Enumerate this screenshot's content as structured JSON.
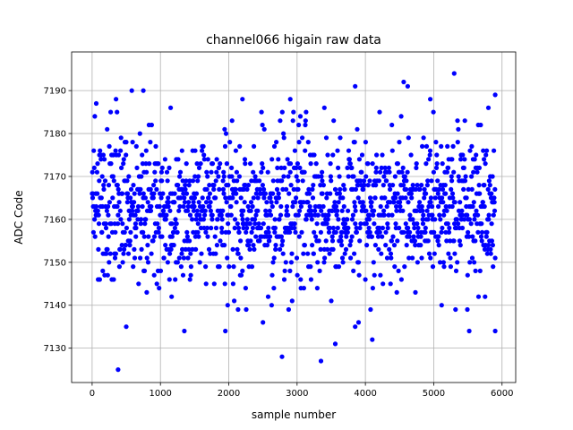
{
  "chart_data": {
    "type": "scatter",
    "title": "channel066 higain raw data",
    "xlabel": "sample number",
    "ylabel": "ADC Code",
    "xlim": [
      -300,
      6200
    ],
    "ylim": [
      7122,
      7199
    ],
    "x_ticks": [
      0,
      1000,
      2000,
      3000,
      4000,
      5000,
      6000
    ],
    "y_ticks": [
      7130,
      7140,
      7150,
      7160,
      7170,
      7180,
      7190
    ],
    "grid": true,
    "marker_color": "#0000ff",
    "n_samples": 5900,
    "x_range": [
      0,
      5900
    ],
    "typical_range": [
      7143,
      7182
    ],
    "outliers": [
      {
        "x": 380,
        "y": 7125
      },
      {
        "x": 2780,
        "y": 7128
      },
      {
        "x": 3350,
        "y": 7127
      },
      {
        "x": 3560,
        "y": 7131
      },
      {
        "x": 4100,
        "y": 7132
      },
      {
        "x": 1350,
        "y": 7134
      },
      {
        "x": 1950,
        "y": 7134
      },
      {
        "x": 5520,
        "y": 7134
      },
      {
        "x": 5900,
        "y": 7134
      },
      {
        "x": 500,
        "y": 7135
      },
      {
        "x": 3850,
        "y": 7135
      },
      {
        "x": 3900,
        "y": 7136
      },
      {
        "x": 2500,
        "y": 7136
      },
      {
        "x": 5900,
        "y": 7189
      },
      {
        "x": 5300,
        "y": 7194
      },
      {
        "x": 4560,
        "y": 7192
      },
      {
        "x": 4620,
        "y": 7191
      },
      {
        "x": 3850,
        "y": 7191
      },
      {
        "x": 580,
        "y": 7190
      },
      {
        "x": 750,
        "y": 7190
      },
      {
        "x": 4950,
        "y": 7188
      },
      {
        "x": 2200,
        "y": 7188
      },
      {
        "x": 2900,
        "y": 7188
      },
      {
        "x": 350,
        "y": 7188
      },
      {
        "x": 60,
        "y": 7187
      },
      {
        "x": 1150,
        "y": 7186
      },
      {
        "x": 3400,
        "y": 7186
      },
      {
        "x": 5800,
        "y": 7186
      }
    ]
  }
}
